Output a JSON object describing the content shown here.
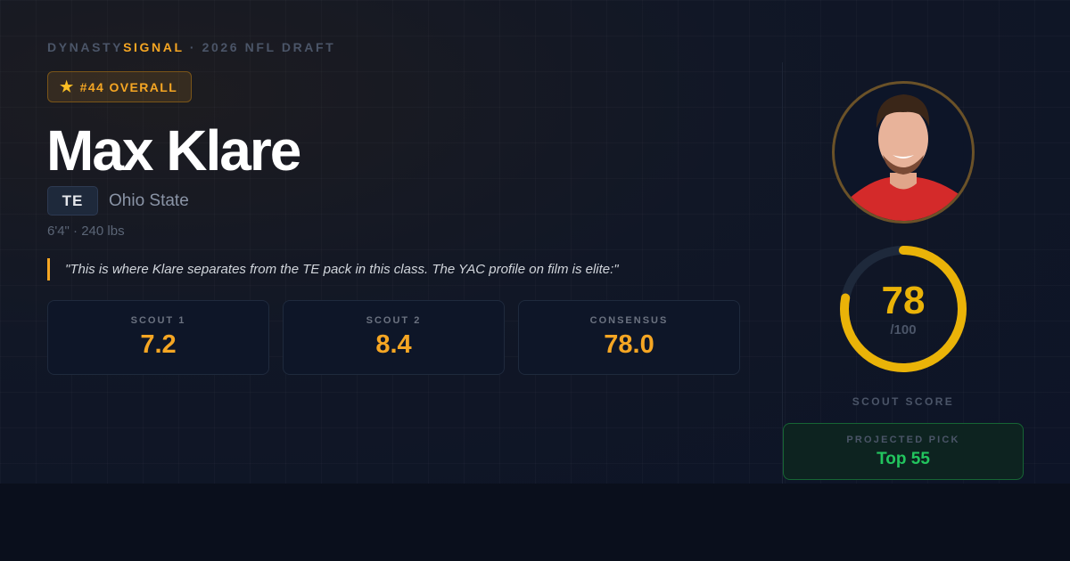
{
  "brand": {
    "part1": "DYNASTY",
    "part2": "SIGNAL",
    "suffix": " · 2026 NFL DRAFT"
  },
  "rank": {
    "icon": "star-icon",
    "label": "#44 OVERALL"
  },
  "player": {
    "name": "Max Klare",
    "position": "TE",
    "school": "Ohio State",
    "measurables": "6'4\" · 240 lbs"
  },
  "quote": "\"This is where Klare separates from the TE pack in this class. The YAC profile on film is elite:\"",
  "stats": [
    {
      "label": "SCOUT 1",
      "value": "7.2"
    },
    {
      "label": "SCOUT 2",
      "value": "8.4"
    },
    {
      "label": "CONSENSUS",
      "value": "78.0"
    }
  ],
  "score": {
    "value": 78,
    "value_text": "78",
    "max_text": "/100",
    "label": "SCOUT SCORE",
    "color": "#eab308"
  },
  "projection": {
    "label": "PROJECTED PICK",
    "value": "Top 55"
  }
}
